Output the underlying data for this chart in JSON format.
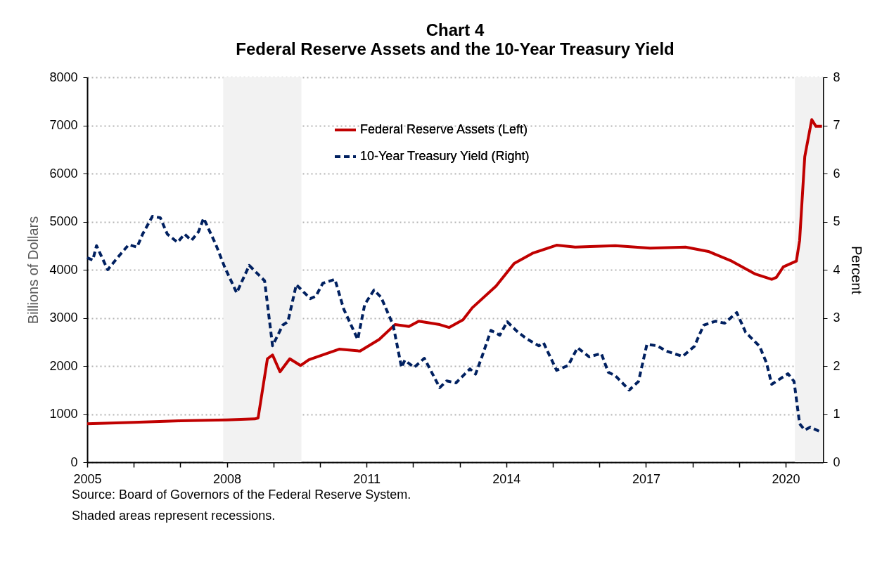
{
  "chart_data": {
    "type": "line",
    "title": "Chart 4",
    "subtitle": "Federal Reserve Assets and the 10-Year Treasury Yield",
    "ylabel": "Billions of Dollars",
    "y2label": "Percent",
    "xlim": [
      2005,
      2020.8
    ],
    "xticks": [
      2005,
      {
        "value": 2006,
        "label": null
      },
      {
        "value": 2007,
        "label": null
      },
      2008,
      {
        "value": 2009,
        "label": null
      },
      {
        "value": 2010,
        "label": null
      },
      2011,
      {
        "value": 2012,
        "label": null
      },
      {
        "value": 2013,
        "label": null
      },
      2014,
      {
        "value": 2015,
        "label": null
      },
      {
        "value": 2016,
        "label": null
      },
      2017,
      {
        "value": 2018,
        "label": null
      },
      {
        "value": 2019,
        "label": null
      },
      2020
    ],
    "ylim": [
      0,
      8000
    ],
    "yticks": [
      0,
      1000,
      2000,
      3000,
      4000,
      5000,
      6000,
      7000,
      8000
    ],
    "y2lim": [
      0,
      8
    ],
    "y2ticks": [
      0,
      1,
      2,
      3,
      4,
      5,
      6,
      7,
      8
    ],
    "grid": "y",
    "legend": "top",
    "marker": "none",
    "bands": [
      {
        "axis": "x",
        "from": 2007.92,
        "to": 2009.6,
        "color": "#f2f2f2"
      },
      {
        "axis": "x",
        "from": 2020.2,
        "to": 2020.8,
        "color": "#f2f2f2"
      }
    ],
    "series": [
      {
        "name": "Federal Reserve Assets (Left)",
        "color": "#c00000",
        "line_style": "solid",
        "x": [
          2005,
          2006,
          2007,
          2008,
          2008.6,
          2008.67,
          2008.87,
          2008.98,
          2009.14,
          2009.35,
          2009.58,
          2009.76,
          2010.41,
          2010.86,
          2011.27,
          2011.61,
          2011.91,
          2012.12,
          2012.57,
          2012.77,
          2013.07,
          2013.27,
          2013.78,
          2014.17,
          2014.58,
          2015.08,
          2015.48,
          2016.34,
          2017.09,
          2017.85,
          2018.34,
          2018.84,
          2019.35,
          2019.7,
          2019.8,
          2019.95,
          2020.23,
          2020.3,
          2020.41,
          2020.56,
          2020.65,
          2020.78
        ],
        "values": [
          800,
          830,
          860,
          880,
          900,
          920,
          2150,
          2230,
          1880,
          2150,
          2010,
          2130,
          2350,
          2310,
          2550,
          2860,
          2820,
          2930,
          2860,
          2800,
          2960,
          3210,
          3660,
          4130,
          4350,
          4510,
          4470,
          4500,
          4450,
          4470,
          4380,
          4180,
          3910,
          3800,
          3840,
          4060,
          4180,
          4610,
          6350,
          7120,
          6980,
          6980
        ]
      },
      {
        "name": "10-Year Treasury Yield (Right)",
        "color": "#002060",
        "line_style": "dashed",
        "axis": "y2",
        "x": [
          2005,
          2005.12,
          2005.2,
          2005.44,
          2005.65,
          2005.89,
          2006.07,
          2006.19,
          2006.4,
          2006.57,
          2006.72,
          2006.94,
          2007.09,
          2007.24,
          2007.39,
          2007.5,
          2007.76,
          2007.95,
          2008.21,
          2008.48,
          2008.81,
          2008.98,
          2009.2,
          2009.31,
          2009.49,
          2009.79,
          2009.91,
          2010.06,
          2010.32,
          2010.51,
          2010.81,
          2010.96,
          2011.16,
          2011.31,
          2011.57,
          2011.75,
          2011.82,
          2012.02,
          2012.24,
          2012.57,
          2012.72,
          2012.92,
          2013.22,
          2013.34,
          2013.48,
          2013.67,
          2013.86,
          2014.02,
          2014.23,
          2014.43,
          2014.7,
          2014.8,
          2015.08,
          2015.33,
          2015.53,
          2015.78,
          2016.04,
          2016.19,
          2016.34,
          2016.64,
          2016.84,
          2017.02,
          2017.24,
          2017.44,
          2017.59,
          2017.79,
          2018.04,
          2018.24,
          2018.49,
          2018.69,
          2018.95,
          2019.14,
          2019.44,
          2019.59,
          2019.7,
          2020.05,
          2020.18,
          2020.3,
          2020.41,
          2020.53,
          2020.75
        ],
        "values": [
          4.25,
          4.2,
          4.5,
          4.0,
          4.25,
          4.52,
          4.47,
          4.74,
          5.11,
          5.08,
          4.74,
          4.57,
          4.74,
          4.61,
          4.79,
          5.07,
          4.53,
          4.06,
          3.52,
          4.09,
          3.77,
          2.42,
          2.85,
          2.92,
          3.69,
          3.4,
          3.45,
          3.72,
          3.8,
          3.18,
          2.55,
          3.28,
          3.58,
          3.43,
          2.85,
          1.97,
          2.12,
          1.97,
          2.16,
          1.55,
          1.69,
          1.65,
          1.94,
          1.83,
          2.2,
          2.74,
          2.64,
          2.92,
          2.72,
          2.57,
          2.42,
          2.48,
          1.91,
          2.01,
          2.38,
          2.19,
          2.26,
          1.87,
          1.8,
          1.5,
          1.68,
          2.45,
          2.42,
          2.31,
          2.26,
          2.2,
          2.41,
          2.85,
          2.93,
          2.89,
          3.11,
          2.7,
          2.41,
          2.06,
          1.62,
          1.84,
          1.68,
          0.8,
          0.67,
          0.73,
          0.63
        ]
      }
    ],
    "annotations": [
      "Source: Board of Governors of the Federal Reserve System.",
      "Shaded areas represent recessions."
    ]
  }
}
